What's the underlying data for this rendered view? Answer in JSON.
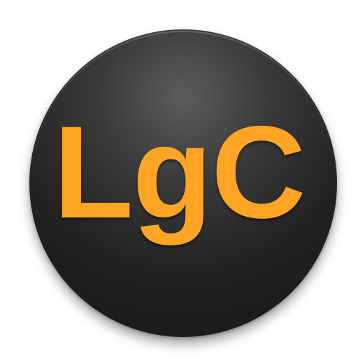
{
  "icon": {
    "text": "LgC",
    "text_color": "#FFA424",
    "background_color": "#2A2A2A"
  }
}
